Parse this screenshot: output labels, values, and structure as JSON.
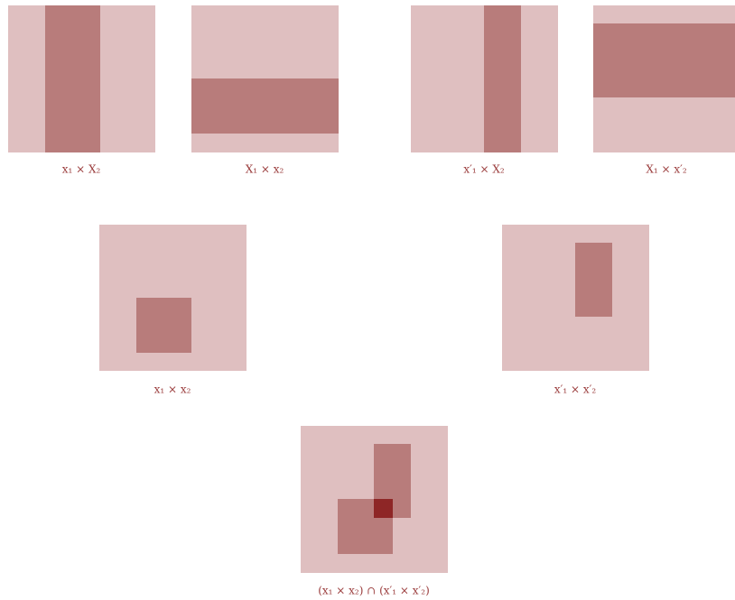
{
  "panels": [
    {
      "label": "x₁ × X₂"
    },
    {
      "label": "X₁ × x₂"
    },
    {
      "label": "x′₁ × X₂"
    },
    {
      "label": "X₁ × x′₂"
    },
    {
      "label": "x₁ × x₂"
    },
    {
      "label": "x′₁ × x′₂"
    },
    {
      "label": "(x₁ × x₂) ∩ (x′₁ × x′₂)"
    }
  ]
}
